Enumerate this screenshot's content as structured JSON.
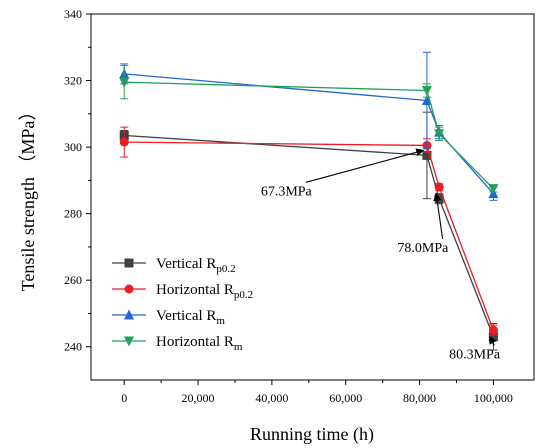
{
  "chart_data": {
    "type": "line",
    "xlabel": "Running time (h)",
    "ylabel": "Tensile strength （MPa）",
    "xlim": [
      -9000,
      111000
    ],
    "ylim": [
      230,
      340
    ],
    "xticks": [
      0,
      20000,
      40000,
      60000,
      80000,
      100000
    ],
    "xtick_labels": [
      "0",
      "20,000",
      "40,000",
      "60,000",
      "80,000",
      "100,000"
    ],
    "yticks": [
      240,
      260,
      280,
      300,
      320,
      340
    ],
    "ytick_labels": [
      "240",
      "260",
      "280",
      "300",
      "320",
      "340"
    ],
    "legend_position": "lower-left",
    "grid": false,
    "series": [
      {
        "name": "Vertical R",
        "sub": "p0.2",
        "marker": "square",
        "color": "#404040",
        "x": [
          0,
          82000,
          85300,
          100000
        ],
        "y": [
          303.5,
          297.5,
          284.5,
          243
        ],
        "err": [
          1.5,
          13,
          1.5,
          4
        ]
      },
      {
        "name": "Horizontal R",
        "sub": "p0.2",
        "marker": "circle",
        "color": "#ee1c25",
        "x": [
          0,
          82000,
          85300,
          100000
        ],
        "y": [
          301.5,
          300.5,
          288,
          245
        ],
        "err": [
          4.5,
          2,
          1,
          1.5
        ]
      },
      {
        "name": "Vertical R",
        "sub": "m",
        "marker": "triangle-up",
        "color": "#2166d4",
        "x": [
          0,
          82000,
          85300,
          100000
        ],
        "y": [
          322,
          314,
          304.5,
          286
        ],
        "err": [
          3,
          14.5,
          2,
          2
        ]
      },
      {
        "name": "Horizontal R",
        "sub": "m",
        "marker": "triangle-down",
        "color": "#21a05a",
        "x": [
          0,
          82000,
          85300,
          100000
        ],
        "y": [
          319.5,
          317,
          304,
          287.5
        ],
        "err": [
          5,
          2,
          2,
          1
        ]
      }
    ],
    "annotations": [
      {
        "text": "67.3MPa",
        "tx": 37000,
        "ty": 285.5,
        "ax": 81000,
        "ay": 299
      },
      {
        "text": "78.0MPa",
        "tx": 74000,
        "ty": 268.5,
        "ax": 84500,
        "ay": 286
      },
      {
        "text": "80.3MPa",
        "tx": 88000,
        "ty": 236.5,
        "ax": 99000,
        "ay": 243
      }
    ]
  }
}
